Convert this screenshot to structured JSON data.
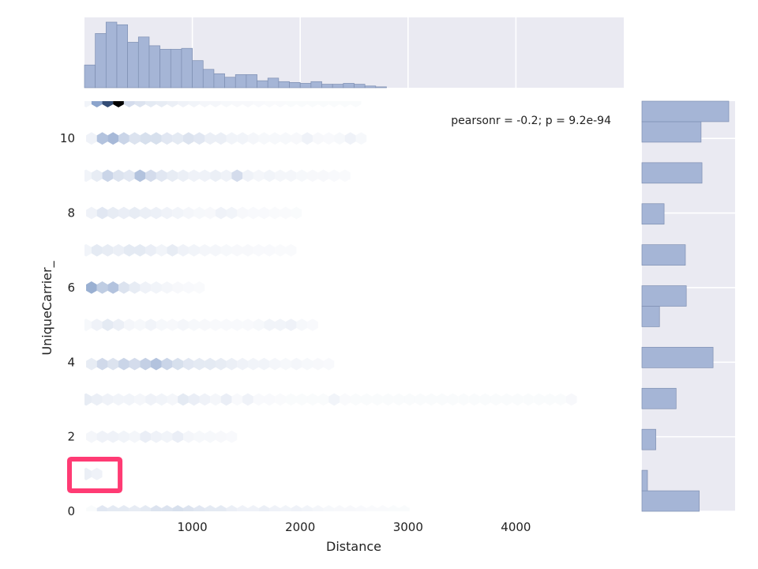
{
  "chart_data": {
    "type": "hexbin",
    "title": "",
    "xlabel": "Distance",
    "ylabel": "UniqueCarrier_",
    "xlim": [
      0,
      5000
    ],
    "ylim": [
      0,
      11
    ],
    "x_ticks": [
      1000,
      2000,
      3000,
      4000
    ],
    "y_ticks": [
      0,
      2,
      4,
      6,
      8,
      10
    ],
    "grid": true,
    "annotation": "pearsonr = -0.2; p = 9.2e-94",
    "colors": {
      "hex_base": "#4c72b0",
      "hex_max": "#000000",
      "hist_fill": "#a5b5d6",
      "hist_edge": "#7e8fb2",
      "panel_bg": "#eaeaf2",
      "highlight": "#ff3b74"
    },
    "marginal_x": {
      "bin_width": 100,
      "bin_start": 0,
      "counts": [
        0.26,
        0.62,
        0.75,
        0.72,
        0.52,
        0.58,
        0.48,
        0.44,
        0.44,
        0.45,
        0.31,
        0.21,
        0.16,
        0.12,
        0.15,
        0.15,
        0.08,
        0.11,
        0.07,
        0.06,
        0.05,
        0.07,
        0.04,
        0.04,
        0.05,
        0.04,
        0.02,
        0.01
      ]
    },
    "marginal_y": {
      "bin_width": 0.55,
      "bins": [
        {
          "y0": 0.0,
          "count": 0.62
        },
        {
          "y0": 0.55,
          "count": 0.06
        },
        {
          "y0": 1.65,
          "count": 0.15
        },
        {
          "y0": 2.75,
          "count": 0.37
        },
        {
          "y0": 3.85,
          "count": 0.77
        },
        {
          "y0": 4.95,
          "count": 0.19
        },
        {
          "y0": 5.5,
          "count": 0.48
        },
        {
          "y0": 6.6,
          "count": 0.47
        },
        {
          "y0": 7.7,
          "count": 0.24
        },
        {
          "y0": 8.8,
          "count": 0.65
        },
        {
          "y0": 9.9,
          "count": 0.64
        },
        {
          "y0": 10.45,
          "count": 0.94
        }
      ]
    },
    "rows": [
      {
        "y": 0,
        "dens": [
          0.02,
          0.22,
          0.2,
          0.2,
          0.18,
          0.2,
          0.25,
          0.25,
          0.28,
          0.25,
          0.22,
          0.2,
          0.2,
          0.15,
          0.12,
          0.12,
          0.15,
          0.12,
          0.1,
          0.12,
          0.1,
          0.08,
          0.06,
          0.05,
          0.05,
          0.04,
          0.03,
          0.03,
          0.02,
          0.02
        ]
      },
      {
        "y": 1,
        "dens": [
          0.15,
          0.12
        ]
      },
      {
        "y": 2,
        "dens": [
          0.08,
          0.12,
          0.12,
          0.1,
          0.08,
          0.16,
          0.12,
          0.1,
          0.16,
          0.08,
          0.06,
          0.06,
          0.05,
          0.04
        ]
      },
      {
        "y": 3,
        "dens": [
          0.18,
          0.15,
          0.12,
          0.1,
          0.1,
          0.08,
          0.12,
          0.1,
          0.08,
          0.2,
          0.16,
          0.12,
          0.08,
          0.16,
          0.04,
          0.12,
          0.04,
          0.04,
          0.03,
          0.02,
          0.02,
          0.02,
          0.02,
          0.1,
          0.03,
          0.02,
          0.02,
          0.02,
          0.02,
          0.02,
          0.02,
          0.02,
          0.02,
          0.02,
          0.02,
          0.02,
          0.02,
          0.02,
          0.02,
          0.02,
          0.02,
          0.02,
          0.02,
          0.02,
          0.02,
          0.05
        ]
      },
      {
        "y": 3.95,
        "dens": [
          0.18,
          0.32,
          0.25,
          0.35,
          0.3,
          0.38,
          0.45,
          0.35,
          0.28,
          0.22,
          0.2,
          0.2,
          0.18,
          0.15,
          0.12,
          0.1,
          0.1,
          0.08,
          0.06,
          0.08,
          0.06,
          0.05,
          0.04
        ]
      },
      {
        "y": 5,
        "dens": [
          0.06,
          0.12,
          0.2,
          0.15,
          0.08,
          0.06,
          0.1,
          0.06,
          0.05,
          0.08,
          0.06,
          0.05,
          0.04,
          0.04,
          0.04,
          0.04,
          0.06,
          0.1,
          0.1,
          0.12,
          0.06,
          0.04
        ]
      },
      {
        "y": 6,
        "dens": [
          0.55,
          0.4,
          0.45,
          0.25,
          0.18,
          0.12,
          0.1,
          0.08,
          0.05,
          0.04,
          0.03
        ]
      },
      {
        "y": 7,
        "dens": [
          0.1,
          0.2,
          0.18,
          0.15,
          0.2,
          0.2,
          0.16,
          0.1,
          0.18,
          0.12,
          0.1,
          0.08,
          0.08,
          0.06,
          0.05,
          0.05,
          0.04,
          0.04,
          0.03,
          0.03
        ]
      },
      {
        "y": 8,
        "dens": [
          0.12,
          0.22,
          0.18,
          0.16,
          0.18,
          0.15,
          0.14,
          0.12,
          0.1,
          0.08,
          0.06,
          0.05,
          0.12,
          0.1,
          0.05,
          0.04,
          0.04,
          0.03,
          0.03,
          0.02
        ]
      },
      {
        "y": 9,
        "dens": [
          0.1,
          0.18,
          0.35,
          0.25,
          0.22,
          0.45,
          0.3,
          0.22,
          0.18,
          0.15,
          0.12,
          0.12,
          0.15,
          0.12,
          0.3,
          0.12,
          0.08,
          0.1,
          0.08,
          0.08,
          0.06,
          0.05,
          0.05,
          0.04,
          0.03
        ]
      },
      {
        "y": 10,
        "dens": [
          0.12,
          0.45,
          0.5,
          0.35,
          0.25,
          0.28,
          0.28,
          0.22,
          0.2,
          0.25,
          0.22,
          0.15,
          0.15,
          0.1,
          0.1,
          0.08,
          0.06,
          0.06,
          0.06,
          0.05,
          0.12,
          0.05,
          0.04,
          0.06,
          0.12,
          0.06
        ]
      },
      {
        "y": 11,
        "dens": [
          0.1,
          0.6,
          0.9,
          1.0,
          0.3,
          0.25,
          0.2,
          0.18,
          0.15,
          0.12,
          0.1,
          0.08,
          0.08,
          0.06,
          0.05,
          0.05,
          0.04,
          0.03,
          0.03,
          0.02,
          0.02,
          0.02,
          0.02,
          0.02,
          0.02,
          0.02
        ]
      }
    ],
    "highlight_box": {
      "x": [
        -140,
        330
      ],
      "y": [
        0.55,
        1.4
      ]
    }
  }
}
